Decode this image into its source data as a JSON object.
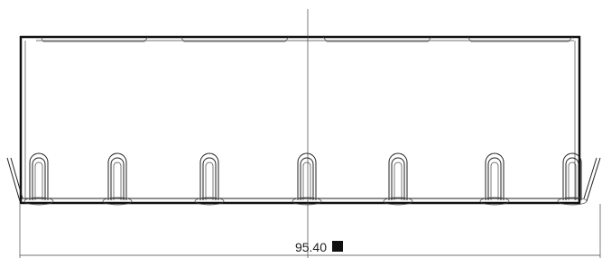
{
  "dimension": {
    "value": "95.40"
  }
}
